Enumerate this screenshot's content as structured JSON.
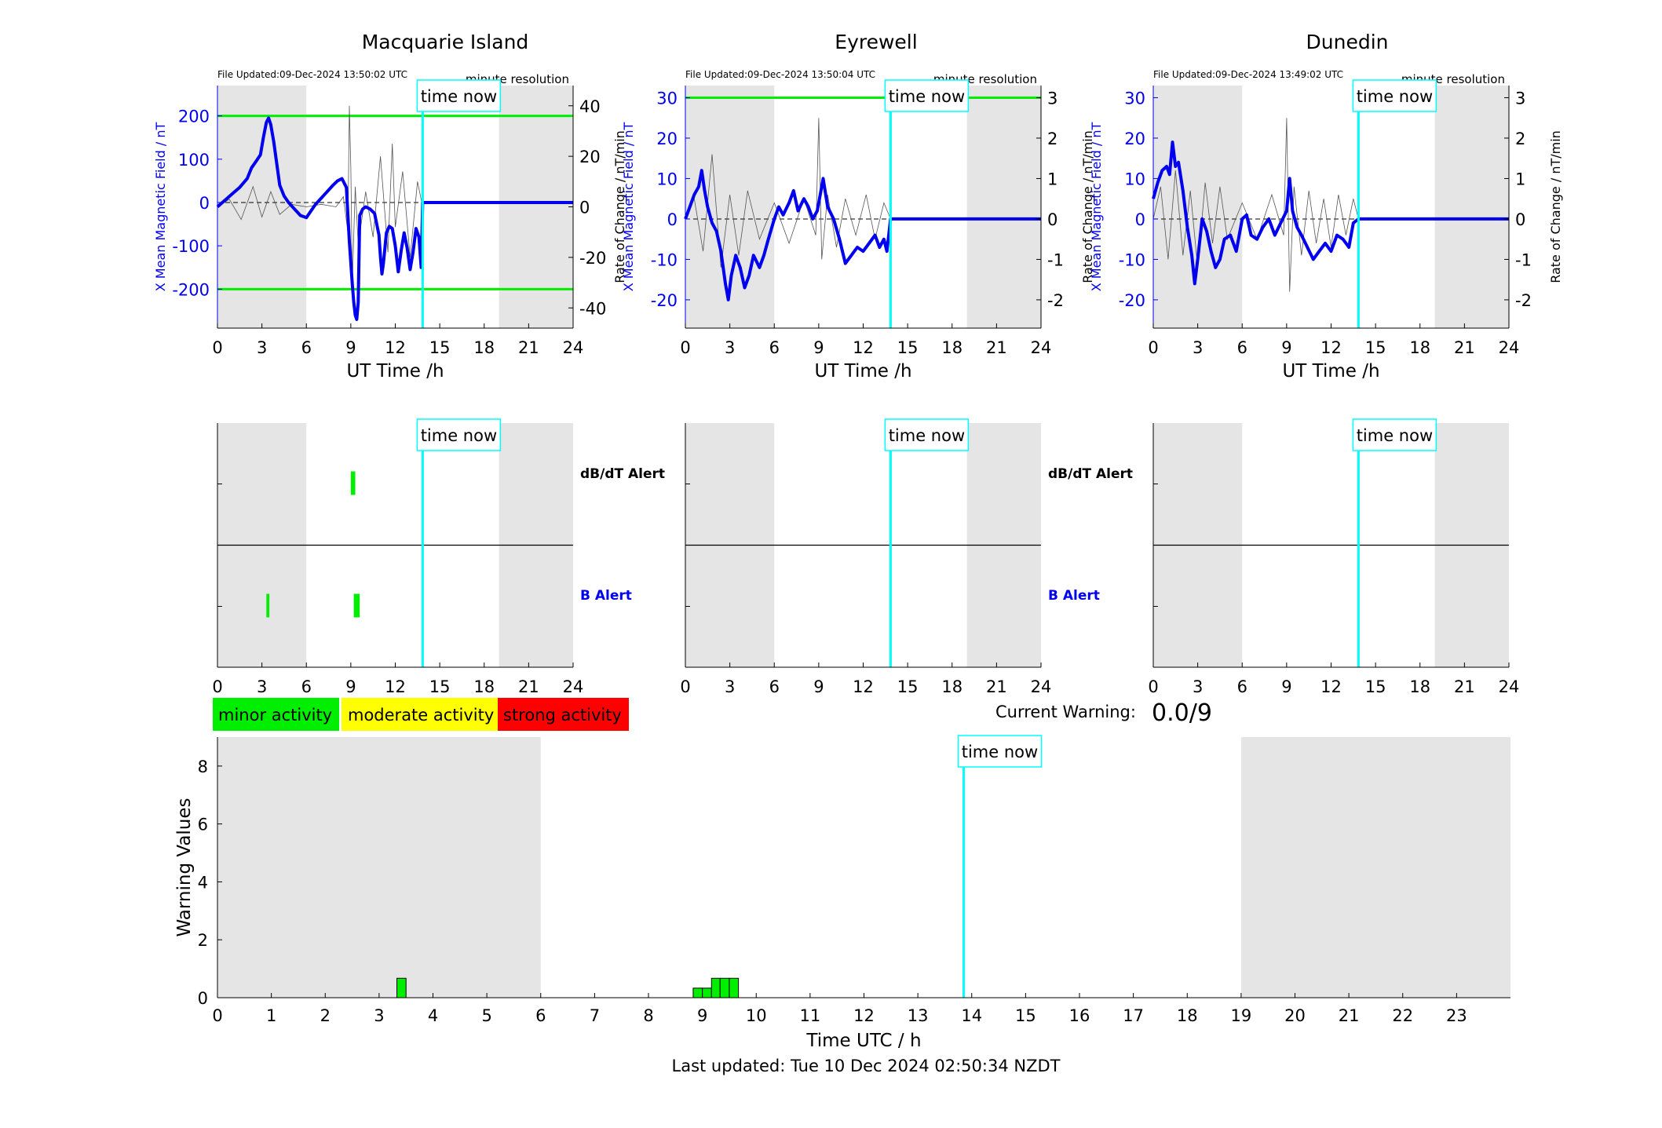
{
  "colors": {
    "night_shade": "#e5e5e5",
    "field_line": "#0000ee",
    "threshold": "#00ee00",
    "time_now": "#00ffff",
    "minor": "#00ee00",
    "moderate": "#ffff00",
    "strong": "#ff0000",
    "b_alert_label": "#0000ee",
    "rate_trace": "#555555"
  },
  "time_now_label": "time now",
  "top": {
    "xlabel": "UT Time /h",
    "ylabel_left": "X Mean Magnetic Field / nT",
    "ylabel_right": "Rate of Change / nT/min",
    "resolution": "minute resolution",
    "xticks": [
      0,
      3,
      6,
      9,
      12,
      15,
      18,
      21,
      24
    ]
  },
  "alerts": {
    "dbdt_label": "dB/dT Alert",
    "b_label": "B Alert",
    "xticks": [
      0,
      3,
      6,
      9,
      12,
      15,
      18,
      21,
      24
    ]
  },
  "legend": [
    {
      "label": "minor activity",
      "color": "#00ee00"
    },
    {
      "label": "moderate activity",
      "color": "#ffff00"
    },
    {
      "label": "strong activity",
      "color": "#ff0000"
    }
  ],
  "current_warning": {
    "label": "Current Warning:",
    "value": "0.0/9"
  },
  "bottom": {
    "xlabel": "Time UTC / h",
    "ylabel": "Warning Values",
    "footer": "Last updated: Tue 10 Dec 2024 02:50:34 NZDT"
  },
  "chart_data": [
    {
      "type": "line",
      "title": "Macquarie Island",
      "file_updated": "File Updated:09-Dec-2024 13:50:02 UTC",
      "xlim": [
        0,
        24
      ],
      "ylim_left": [
        -290,
        270
      ],
      "yticks_left": [
        200,
        100,
        0,
        -100,
        -200
      ],
      "ylim_right": [
        -48,
        48
      ],
      "yticks_right": [
        40,
        20,
        0,
        -20,
        -40
      ],
      "thresholds": [
        200,
        -200
      ],
      "night_shading": [
        [
          0,
          6
        ],
        [
          19,
          24
        ]
      ],
      "time_now": 13.85,
      "series": [
        {
          "axis": "left",
          "x": [
            0,
            0.5,
            1,
            1.5,
            2,
            2.3,
            2.6,
            2.9,
            3.1,
            3.3,
            3.45,
            3.6,
            3.8,
            4.0,
            4.2,
            4.5,
            4.8,
            5.2,
            5.6,
            6.0,
            6.3,
            6.6,
            7.0,
            7.4,
            7.8,
            8.1,
            8.4,
            8.7,
            8.9,
            9.0,
            9.1,
            9.2,
            9.3,
            9.4,
            9.5,
            9.6,
            9.8,
            10.0,
            10.3,
            10.6,
            10.9,
            11.0,
            11.1,
            11.2,
            11.4,
            11.6,
            11.8,
            12.0,
            12.2,
            12.4,
            12.6,
            12.8,
            13.0,
            13.2,
            13.4,
            13.6,
            13.75,
            13.85,
            24
          ],
          "values": [
            -10,
            5,
            20,
            35,
            55,
            80,
            95,
            110,
            150,
            185,
            195,
            180,
            140,
            90,
            40,
            15,
            0,
            -15,
            -30,
            -35,
            -20,
            -5,
            10,
            25,
            40,
            50,
            55,
            35,
            -90,
            -140,
            -190,
            -230,
            -260,
            -270,
            -230,
            -30,
            -15,
            -10,
            -15,
            -25,
            -75,
            -125,
            -165,
            -140,
            -70,
            -55,
            -60,
            -100,
            -160,
            -110,
            -70,
            -105,
            -155,
            -115,
            -60,
            -80,
            -150,
            0,
            0
          ]
        },
        {
          "axis": "right",
          "name": "rate",
          "x": [
            0,
            0.8,
            1.6,
            2.4,
            3.0,
            3.6,
            4.2,
            5.0,
            6.0,
            7.0,
            8.0,
            8.5,
            8.8,
            8.9,
            9.0,
            9.1,
            9.3,
            9.5,
            10.0,
            10.5,
            11.0,
            11.5,
            11.8,
            12.0,
            12.5,
            13.0,
            13.5,
            13.85
          ],
          "values": [
            0,
            3,
            -5,
            8,
            -4,
            6,
            -3,
            1,
            0,
            1,
            0,
            4,
            -10,
            40,
            15,
            -30,
            8,
            -15,
            6,
            -12,
            20,
            -18,
            25,
            -8,
            14,
            -20,
            10,
            0
          ]
        }
      ]
    },
    {
      "type": "line",
      "title": "Eyrewell",
      "file_updated": "File Updated:09-Dec-2024 13:50:04 UTC",
      "xlim": [
        0,
        24
      ],
      "ylim_left": [
        -27,
        33
      ],
      "yticks_left": [
        30,
        20,
        10,
        0,
        -10,
        -20
      ],
      "ylim_right": [
        -2.7,
        3.3
      ],
      "yticks_right": [
        3,
        2,
        1,
        0,
        -1,
        -2
      ],
      "thresholds": [
        30
      ],
      "night_shading": [
        [
          0,
          6
        ],
        [
          19,
          24
        ]
      ],
      "time_now": 13.85,
      "series": [
        {
          "axis": "left",
          "x": [
            0,
            0.3,
            0.6,
            0.9,
            1.1,
            1.3,
            1.5,
            1.8,
            2.1,
            2.4,
            2.7,
            2.9,
            3.1,
            3.4,
            3.7,
            4.0,
            4.3,
            4.6,
            5.0,
            5.3,
            5.6,
            6.0,
            6.3,
            6.6,
            7.0,
            7.3,
            7.6,
            8.0,
            8.3,
            8.6,
            8.9,
            9.1,
            9.3,
            9.6,
            10.0,
            10.4,
            10.8,
            11.2,
            11.6,
            12.0,
            12.4,
            12.8,
            13.1,
            13.4,
            13.6,
            13.85,
            24
          ],
          "values": [
            0,
            3,
            6,
            8,
            12,
            7,
            3,
            -1,
            -3,
            -8,
            -16,
            -20,
            -14,
            -9,
            -12,
            -17,
            -14,
            -9,
            -12,
            -9,
            -5,
            0,
            3,
            1,
            4,
            7,
            2,
            5,
            3,
            0,
            2,
            6,
            10,
            3,
            0,
            -5,
            -11,
            -9,
            -7,
            -8,
            -6,
            -4,
            -7,
            -5,
            -8,
            0,
            0
          ]
        },
        {
          "axis": "right",
          "name": "rate",
          "x": [
            0,
            0.6,
            1.2,
            1.8,
            2.4,
            3.0,
            3.6,
            4.2,
            5.0,
            6.0,
            7.0,
            8.0,
            8.8,
            9.0,
            9.2,
            9.6,
            10.2,
            10.8,
            11.5,
            12.2,
            12.8,
            13.4,
            13.85
          ],
          "values": [
            0,
            0.5,
            -0.8,
            1.6,
            -1.2,
            0.6,
            -0.9,
            0.7,
            -0.5,
            0.4,
            -0.6,
            0.5,
            -0.4,
            2.5,
            -1.0,
            0.6,
            -0.7,
            0.5,
            -0.4,
            0.6,
            -0.5,
            0.4,
            0
          ]
        }
      ]
    },
    {
      "type": "line",
      "title": "Dunedin",
      "file_updated": "File Updated:09-Dec-2024 13:49:02 UTC",
      "xlim": [
        0,
        24
      ],
      "ylim_left": [
        -27,
        33
      ],
      "yticks_left": [
        30,
        20,
        10,
        0,
        -10,
        -20
      ],
      "ylim_right": [
        -2.7,
        3.3
      ],
      "yticks_right": [
        3,
        2,
        1,
        0,
        -1,
        -2
      ],
      "thresholds": [],
      "night_shading": [
        [
          0,
          6
        ],
        [
          19,
          24
        ]
      ],
      "time_now": 13.85,
      "series": [
        {
          "axis": "left",
          "x": [
            0,
            0.3,
            0.6,
            0.9,
            1.1,
            1.3,
            1.5,
            1.7,
            2.0,
            2.3,
            2.6,
            2.8,
            3.0,
            3.3,
            3.6,
            3.9,
            4.2,
            4.5,
            4.8,
            5.2,
            5.6,
            6.0,
            6.3,
            6.6,
            7.0,
            7.4,
            7.8,
            8.2,
            8.6,
            9.0,
            9.2,
            9.4,
            9.7,
            10.0,
            10.4,
            10.8,
            11.2,
            11.6,
            12.0,
            12.4,
            12.8,
            13.2,
            13.5,
            13.85,
            24
          ],
          "values": [
            5,
            9,
            12,
            13,
            11,
            19,
            13,
            14,
            7,
            -2,
            -9,
            -16,
            -10,
            0,
            -3,
            -8,
            -12,
            -10,
            -5,
            -4,
            -8,
            0,
            1,
            -4,
            -5,
            -2,
            0,
            -4,
            -1,
            2,
            10,
            2,
            -2,
            -4,
            -7,
            -10,
            -8,
            -6,
            -8,
            -4,
            -5,
            -7,
            -1,
            0,
            0
          ]
        },
        {
          "axis": "right",
          "name": "rate",
          "x": [
            0,
            0.5,
            1.0,
            1.5,
            2.0,
            2.5,
            3.0,
            3.5,
            4.0,
            4.5,
            5.0,
            6.0,
            7.0,
            8.0,
            8.8,
            9.0,
            9.2,
            9.5,
            10.0,
            10.5,
            11.0,
            11.5,
            12.0,
            12.5,
            13.0,
            13.5,
            13.85
          ],
          "values": [
            0,
            0.8,
            -1.0,
            1.2,
            -0.9,
            0.7,
            -1.2,
            0.9,
            -0.6,
            0.8,
            -0.5,
            0.4,
            -0.5,
            0.6,
            -0.4,
            2.5,
            -1.8,
            0.8,
            -0.9,
            0.7,
            -0.6,
            0.5,
            -0.7,
            0.6,
            -0.4,
            0.5,
            0
          ]
        }
      ]
    },
    {
      "type": "bar",
      "title": "",
      "name": "Macquarie Island alerts",
      "xlim": [
        0,
        24
      ],
      "night_shading": [
        [
          0,
          6
        ],
        [
          19,
          24
        ]
      ],
      "time_now": 13.85,
      "dbdt_alerts": [
        [
          9.0,
          9.3
        ]
      ],
      "b_alerts": [
        [
          3.3,
          3.5
        ],
        [
          9.2,
          9.6
        ]
      ]
    },
    {
      "type": "bar",
      "title": "",
      "name": "Eyrewell alerts",
      "xlim": [
        0,
        24
      ],
      "night_shading": [
        [
          0,
          6
        ],
        [
          19,
          24
        ]
      ],
      "time_now": 13.85,
      "dbdt_alerts": [],
      "b_alerts": []
    },
    {
      "type": "bar",
      "title": "",
      "name": "Dunedin alerts",
      "xlim": [
        0,
        24
      ],
      "night_shading": [
        [
          0,
          6
        ],
        [
          19,
          24
        ]
      ],
      "time_now": 13.85,
      "dbdt_alerts": [],
      "b_alerts": []
    },
    {
      "type": "bar",
      "title": "",
      "xlabel": "Time UTC / h",
      "ylabel": "Warning Values",
      "xlim": [
        0,
        24
      ],
      "ylim": [
        0,
        9
      ],
      "yticks": [
        0,
        2,
        4,
        6,
        8
      ],
      "xticks": [
        0,
        1,
        2,
        3,
        4,
        5,
        6,
        7,
        8,
        9,
        10,
        11,
        12,
        13,
        14,
        15,
        16,
        17,
        18,
        19,
        20,
        21,
        22,
        23
      ],
      "night_shading": [
        [
          0,
          6
        ],
        [
          19,
          24
        ]
      ],
      "time_now": 13.85,
      "bars": [
        {
          "start": 3.33,
          "end": 3.5,
          "value": 0.67
        },
        {
          "start": 8.83,
          "end": 9.0,
          "value": 0.33
        },
        {
          "start": 9.0,
          "end": 9.17,
          "value": 0.33
        },
        {
          "start": 9.17,
          "end": 9.33,
          "value": 0.67
        },
        {
          "start": 9.33,
          "end": 9.5,
          "value": 0.67
        },
        {
          "start": 9.5,
          "end": 9.67,
          "value": 0.67
        }
      ]
    }
  ]
}
